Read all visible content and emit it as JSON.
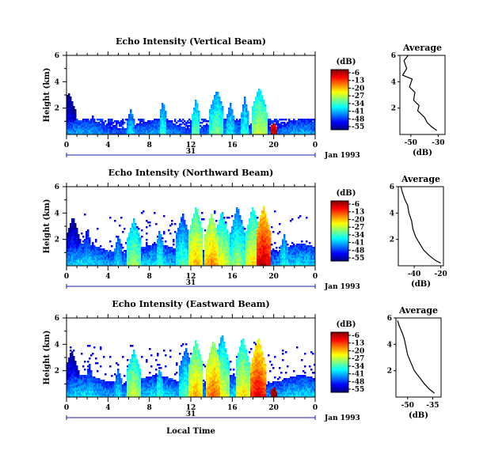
{
  "chart_data": [
    {
      "type": "heatmap",
      "title": "Echo Intensity (Vertical Beam)",
      "ylabel": "Height (km)",
      "yticks": [
        "2",
        "4",
        "6"
      ],
      "ylim": [
        0,
        6
      ],
      "xticks": [
        "0",
        "4",
        "8",
        "12",
        "16",
        "20",
        "0"
      ],
      "xlim": [
        0,
        24
      ],
      "date_marker": "31",
      "date_label": "Jan 1993",
      "colorbar": {
        "unit": "(dB)",
        "ticks": [
          "-6",
          "-13",
          "-20",
          "-27",
          "-34",
          "-41",
          "-48",
          "-55"
        ],
        "range": [
          -55,
          -6
        ]
      },
      "echo_columns": [
        {
          "t": 0.2,
          "top": 3.2,
          "db": -47
        },
        {
          "t": 2.5,
          "top": 1.5,
          "db": -45
        },
        {
          "t": 6.2,
          "top": 1.9,
          "db": -40
        },
        {
          "t": 9.3,
          "top": 2.6,
          "db": -36
        },
        {
          "t": 12.5,
          "top": 2.8,
          "db": -34
        },
        {
          "t": 14.5,
          "top": 3.4,
          "db": -32
        },
        {
          "t": 15.8,
          "top": 2.5,
          "db": -38
        },
        {
          "t": 17.2,
          "top": 2.9,
          "db": -36
        },
        {
          "t": 18.6,
          "top": 3.6,
          "db": -28
        },
        {
          "t": 19.1,
          "top": 2.4,
          "db": -30
        },
        {
          "t": 20.0,
          "top": 0.9,
          "db": -10
        }
      ],
      "inset": {
        "title": "Average",
        "xlabel": "(dB)",
        "xticks": [
          "-50",
          "-30"
        ],
        "yticks": [
          "2",
          "4",
          "6"
        ],
        "xlim": [
          -58,
          -25
        ],
        "ylim": [
          0,
          6
        ],
        "profile": [
          [
            -52,
            6
          ],
          [
            -55,
            5.6
          ],
          [
            -53,
            5.0
          ],
          [
            -56,
            4.5
          ],
          [
            -49,
            4.2
          ],
          [
            -51,
            3.6
          ],
          [
            -47,
            3.2
          ],
          [
            -48,
            2.6
          ],
          [
            -44,
            2.2
          ],
          [
            -45,
            1.8
          ],
          [
            -40,
            1.3
          ],
          [
            -38,
            0.9
          ],
          [
            -35,
            0.6
          ],
          [
            -31,
            0.3
          ]
        ]
      }
    },
    {
      "type": "heatmap",
      "title": "Echo Intensity (Northward Beam)",
      "ylabel": "Height (km)",
      "yticks": [
        "2",
        "4",
        "6"
      ],
      "ylim": [
        0,
        6
      ],
      "xticks": [
        "0",
        "4",
        "8",
        "12",
        "16",
        "20",
        "0"
      ],
      "xlim": [
        0,
        24
      ],
      "date_marker": "31",
      "date_label": "Jan 1993",
      "colorbar": {
        "unit": "(dB)",
        "ticks": [
          "-6",
          "-13",
          "-20",
          "-27",
          "-34",
          "-41",
          "-48",
          "-55"
        ],
        "range": [
          -55,
          -6
        ]
      },
      "echo_columns": [
        {
          "t": 0.6,
          "top": 3.8,
          "db": -44
        },
        {
          "t": 2.0,
          "top": 3.0,
          "db": -42
        },
        {
          "t": 5.0,
          "top": 2.4,
          "db": -40
        },
        {
          "t": 6.5,
          "top": 3.6,
          "db": -30
        },
        {
          "t": 9.0,
          "top": 2.8,
          "db": -36
        },
        {
          "t": 11.2,
          "top": 4.0,
          "db": -34
        },
        {
          "t": 12.5,
          "top": 4.6,
          "db": -22
        },
        {
          "t": 14.0,
          "top": 4.0,
          "db": -20
        },
        {
          "t": 15.0,
          "top": 4.2,
          "db": -26
        },
        {
          "t": 16.5,
          "top": 4.6,
          "db": -30
        },
        {
          "t": 18.0,
          "top": 4.6,
          "db": -24
        },
        {
          "t": 19.0,
          "top": 4.6,
          "db": -10
        },
        {
          "t": 21.0,
          "top": 2.4,
          "db": -38
        }
      ],
      "inset": {
        "title": "Average",
        "xlabel": "(dB)",
        "xticks": [
          "-40",
          "-20"
        ],
        "yticks": [
          "2",
          "4",
          "6"
        ],
        "xlim": [
          -52,
          -18
        ],
        "ylim": [
          0,
          6
        ],
        "profile": [
          [
            -50,
            6
          ],
          [
            -49,
            5.6
          ],
          [
            -47,
            5.0
          ],
          [
            -45,
            4.6
          ],
          [
            -44,
            4.0
          ],
          [
            -42,
            3.4
          ],
          [
            -41,
            2.8
          ],
          [
            -39,
            2.2
          ],
          [
            -36,
            1.7
          ],
          [
            -33,
            1.2
          ],
          [
            -29,
            0.8
          ],
          [
            -24,
            0.4
          ],
          [
            -20,
            0.2
          ]
        ]
      }
    },
    {
      "type": "heatmap",
      "title": "Echo Intensity (Eastward Beam)",
      "ylabel": "Height (km)",
      "yticks": [
        "2",
        "4",
        "6"
      ],
      "ylim": [
        0,
        6
      ],
      "xticks": [
        "0",
        "4",
        "8",
        "12",
        "16",
        "20",
        "0"
      ],
      "xlim": [
        0,
        24
      ],
      "xlabel": "Local Time",
      "date_marker": "31",
      "date_label": "Jan 1993",
      "colorbar": {
        "unit": "(dB)",
        "ticks": [
          "-6",
          "-13",
          "-20",
          "-27",
          "-34",
          "-41",
          "-48",
          "-55"
        ],
        "range": [
          -55,
          -6
        ]
      },
      "echo_columns": [
        {
          "t": 0.5,
          "top": 3.6,
          "db": -44
        },
        {
          "t": 2.2,
          "top": 2.6,
          "db": -42
        },
        {
          "t": 5.0,
          "top": 2.2,
          "db": -40
        },
        {
          "t": 6.5,
          "top": 3.6,
          "db": -28
        },
        {
          "t": 9.0,
          "top": 2.2,
          "db": -36
        },
        {
          "t": 11.5,
          "top": 3.8,
          "db": -34
        },
        {
          "t": 12.5,
          "top": 4.4,
          "db": -22
        },
        {
          "t": 14.2,
          "top": 4.4,
          "db": -18
        },
        {
          "t": 15.0,
          "top": 4.8,
          "db": -26
        },
        {
          "t": 17.0,
          "top": 4.6,
          "db": -24
        },
        {
          "t": 18.5,
          "top": 4.6,
          "db": -12
        },
        {
          "t": 20.0,
          "top": 0.8,
          "db": -8
        }
      ],
      "inset": {
        "title": "Average",
        "xlabel": "(dB)",
        "xticks": [
          "-50",
          "-35"
        ],
        "yticks": [
          "2",
          "4",
          "6"
        ],
        "xlim": [
          -57,
          -30
        ],
        "ylim": [
          0,
          6
        ],
        "profile": [
          [
            -56,
            5.8
          ],
          [
            -55,
            5.4
          ],
          [
            -53,
            4.8
          ],
          [
            -52,
            4.4
          ],
          [
            -51,
            3.8
          ],
          [
            -50,
            3.2
          ],
          [
            -48,
            2.6
          ],
          [
            -46,
            2.0
          ],
          [
            -43,
            1.5
          ],
          [
            -40,
            1.0
          ],
          [
            -37,
            0.6
          ],
          [
            -34,
            0.3
          ]
        ]
      }
    }
  ]
}
